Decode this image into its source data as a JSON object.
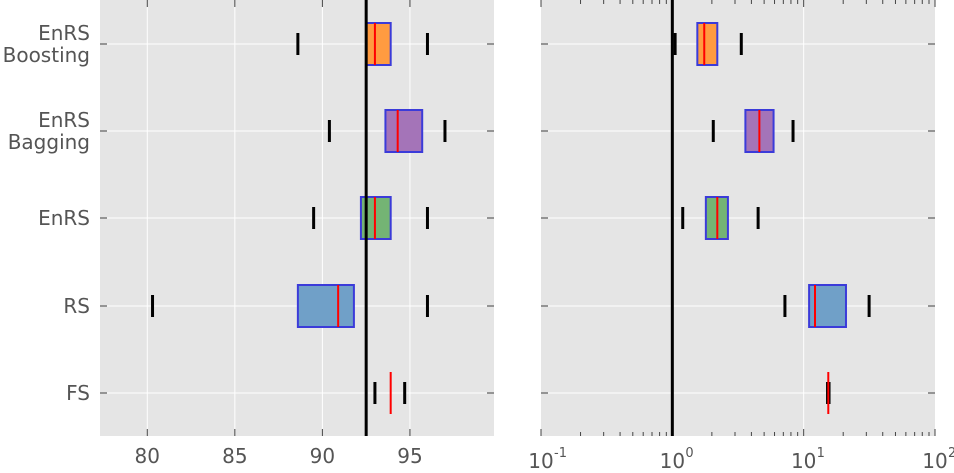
{
  "chart_data": [
    {
      "type": "box",
      "orientation": "horizontal",
      "xscale": "linear",
      "xlim": [
        77.3,
        99.8
      ],
      "x_ticks": [
        80,
        85,
        90,
        95
      ],
      "x_tick_labels": [
        "80",
        "85",
        "90",
        "95"
      ],
      "categories": [
        "EnRS\nBoosting",
        "EnRS\nBagging",
        "EnRS",
        "RS",
        "FS"
      ],
      "reference_line": 92.5,
      "grid": true,
      "boxes": [
        {
          "category": "EnRS\nBoosting",
          "whisker_low": 88.6,
          "q1": 92.5,
          "median": 93.0,
          "q3": 93.9,
          "whisker_high": 96.0,
          "color": "#ff9b40"
        },
        {
          "category": "EnRS\nBagging",
          "whisker_low": 90.4,
          "q1": 93.6,
          "median": 94.3,
          "q3": 95.7,
          "whisker_high": 97.0,
          "color": "#a474b8"
        },
        {
          "category": "EnRS",
          "whisker_low": 89.5,
          "q1": 92.2,
          "median": 93.0,
          "q3": 93.9,
          "whisker_high": 96.0,
          "color": "#74b474"
        },
        {
          "category": "RS",
          "whisker_low": 80.3,
          "q1": 88.6,
          "median": 90.9,
          "q3": 91.8,
          "whisker_high": 96.0,
          "color": "#70a0c8"
        },
        {
          "category": "FS",
          "whisker_low": 93.0,
          "q1": 93.9,
          "median": 93.9,
          "q3": 93.9,
          "whisker_high": 94.7,
          "color": "#cccccc"
        }
      ]
    },
    {
      "type": "box",
      "orientation": "horizontal",
      "xscale": "log",
      "xlim": [
        0.1,
        100
      ],
      "x_ticks": [
        0.1,
        1,
        10,
        100
      ],
      "x_tick_labels": [
        {
          "base": "10",
          "exp": "-1"
        },
        {
          "base": "10",
          "exp": "0"
        },
        {
          "base": "10",
          "exp": "1"
        },
        {
          "base": "10",
          "exp": "2"
        }
      ],
      "categories": [
        "EnRS\nBoosting",
        "EnRS\nBagging",
        "EnRS",
        "RS",
        "FS"
      ],
      "reference_line": 1,
      "grid": true,
      "boxes": [
        {
          "category": "EnRS\nBoosting",
          "whisker_low": 1.05,
          "q1": 1.55,
          "median": 1.75,
          "q3": 2.2,
          "whisker_high": 3.35,
          "color": "#ff9b40"
        },
        {
          "category": "EnRS\nBagging",
          "whisker_low": 2.05,
          "q1": 3.6,
          "median": 4.6,
          "q3": 5.9,
          "whisker_high": 8.3,
          "color": "#a474b8"
        },
        {
          "category": "EnRS",
          "whisker_low": 1.2,
          "q1": 1.8,
          "median": 2.2,
          "q3": 2.65,
          "whisker_high": 4.5,
          "color": "#74b474"
        },
        {
          "category": "RS",
          "whisker_low": 7.2,
          "q1": 11.0,
          "median": 12.2,
          "q3": 21.0,
          "whisker_high": 31.5,
          "color": "#70a0c8"
        },
        {
          "category": "FS",
          "whisker_low": 15.2,
          "q1": 15.4,
          "median": 15.4,
          "q3": 15.4,
          "whisker_high": 15.6,
          "color": "#cccccc"
        }
      ]
    }
  ],
  "style": {
    "panel_bg": "#e5e5e5",
    "grid_color": "#ffffff",
    "median_color": "#ff0000",
    "box_edge": "#3b3bd9",
    "whisker_color": "#000000",
    "reference_color": "#000000",
    "text_color": "#555555"
  }
}
